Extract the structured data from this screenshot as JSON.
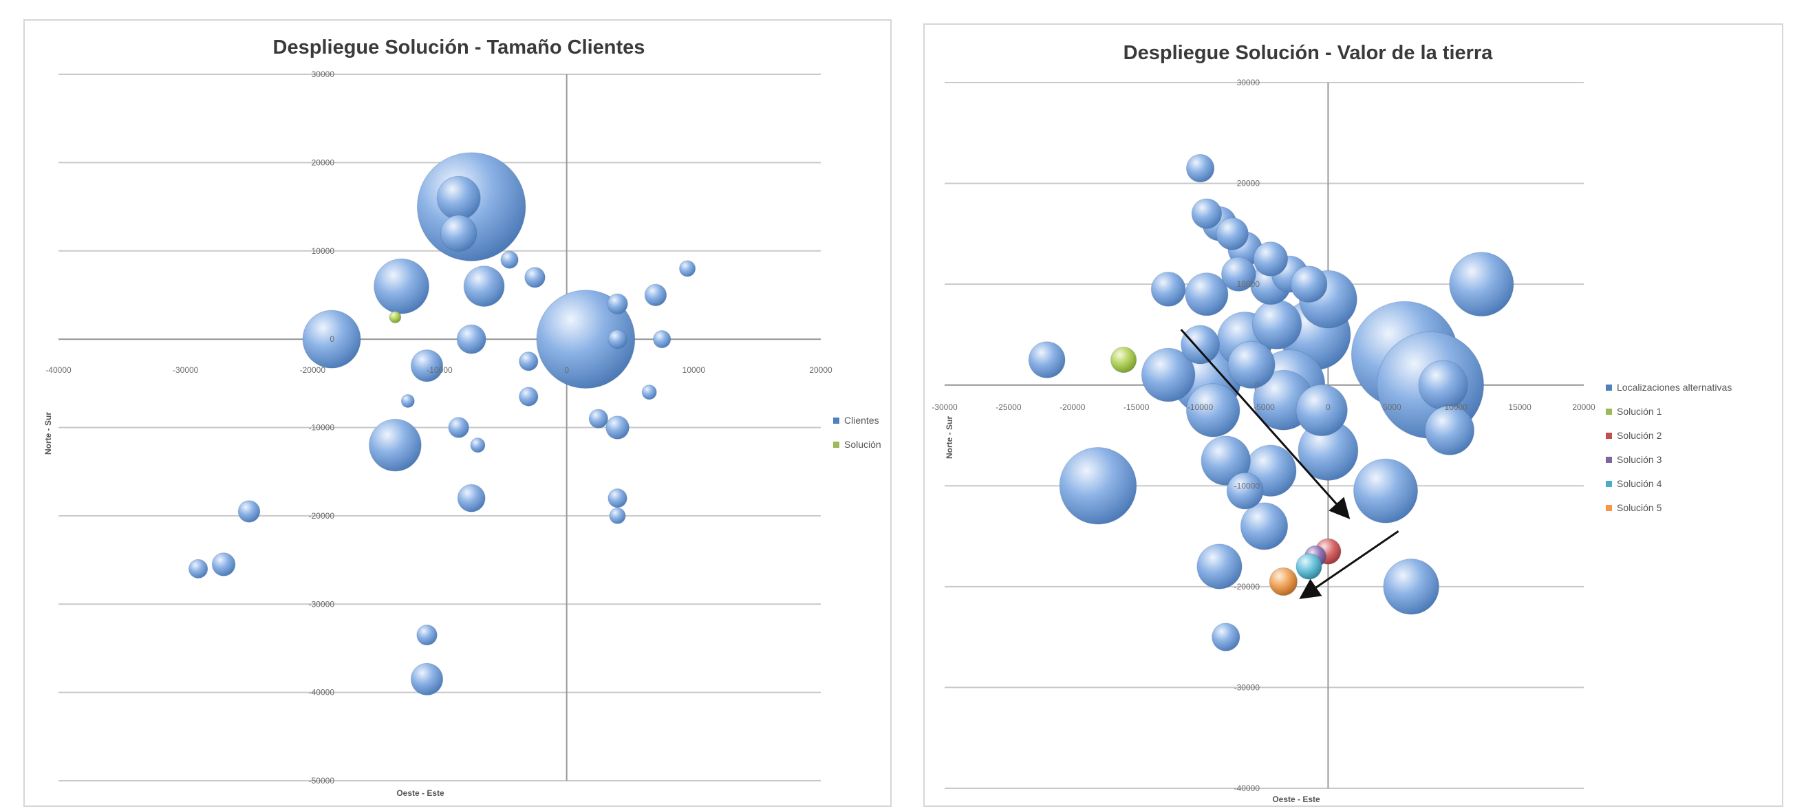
{
  "chart_data": [
    {
      "type": "bubble",
      "title": "Despliegue Solución - Tamaño Clientes",
      "xlabel": "Oeste - Este",
      "ylabel": "Norte - Sur",
      "xlim": [
        -40000,
        20000
      ],
      "ylim": [
        -50000,
        30000
      ],
      "x_ticks": [
        "-40000",
        "-30000",
        "-20000",
        "-10000",
        "0",
        "10000",
        "20000"
      ],
      "y_ticks": [
        "30000",
        "20000",
        "10000",
        "0",
        "-10000",
        "-20000",
        "-30000",
        "-40000",
        "-50000"
      ],
      "grid": true,
      "legend_position": "right",
      "colors": {
        "Clientes": "#7aa3dc",
        "Solución": "#a7c94e"
      },
      "series": [
        {
          "name": "Clientes",
          "points": [
            [
              -7500,
              15000,
              7.5
            ],
            [
              -8500,
              16000,
              3
            ],
            [
              -8500,
              12000,
              2.5
            ],
            [
              -13000,
              6000,
              3.8
            ],
            [
              -6500,
              6000,
              2.8
            ],
            [
              -4500,
              9000,
              1.2
            ],
            [
              -2500,
              7000,
              1.4
            ],
            [
              -18500,
              0,
              4
            ],
            [
              -7500,
              0,
              2
            ],
            [
              -11000,
              -3000,
              2.2
            ],
            [
              -3000,
              -2500,
              1.3
            ],
            [
              -3000,
              -6500,
              1.3
            ],
            [
              -12500,
              -7000,
              0.9
            ],
            [
              -13500,
              -12000,
              3.6
            ],
            [
              -8500,
              -10000,
              1.4
            ],
            [
              -7000,
              -12000,
              1.0
            ],
            [
              1500,
              0,
              6.8
            ],
            [
              4000,
              4000,
              1.4
            ],
            [
              7000,
              5000,
              1.5
            ],
            [
              4000,
              0,
              1.3
            ],
            [
              7500,
              0,
              1.2
            ],
            [
              9500,
              8000,
              1.1
            ],
            [
              6500,
              -6000,
              1.0
            ],
            [
              2500,
              -9000,
              1.3
            ],
            [
              4000,
              -10000,
              1.6
            ],
            [
              -25000,
              -19500,
              1.5
            ],
            [
              -7500,
              -18000,
              1.9
            ],
            [
              4000,
              -18000,
              1.3
            ],
            [
              4000,
              -20000,
              1.1
            ],
            [
              -29000,
              -26000,
              1.3
            ],
            [
              -27000,
              -25500,
              1.6
            ],
            [
              -11000,
              -33500,
              1.4
            ],
            [
              -11000,
              -38500,
              2.2
            ]
          ]
        },
        {
          "name": "Solución",
          "points": [
            [
              -13500,
              2500,
              0.8
            ]
          ]
        }
      ]
    },
    {
      "type": "bubble",
      "title": "Despliegue Solución - Valor de la tierra",
      "xlabel": "Oeste - Este",
      "ylabel": "Norte - Sur",
      "xlim": [
        -30000,
        20000
      ],
      "ylim": [
        -40000,
        30000
      ],
      "x_ticks": [
        "-30000",
        "-25000",
        "-20000",
        "-15000",
        "-10000",
        "-5000",
        "0",
        "5000",
        "10000",
        "15000",
        "20000"
      ],
      "y_ticks": [
        "30000",
        "20000",
        "10000",
        "0",
        "-10000",
        "-20000",
        "-30000",
        "-40000"
      ],
      "grid": true,
      "legend_position": "right",
      "colors": {
        "Localizaciones alternativas": "#7aa3dc",
        "Solución 1": "#a7c94e",
        "Solución 2": "#d25a5a",
        "Solución 3": "#8064a2",
        "Solución 4": "#4bacc6",
        "Solución 5": "#f29a4a"
      },
      "series": [
        {
          "name": "Localizaciones alternativas",
          "points": [
            [
              -10000,
              21500,
              1.3
            ],
            [
              -9500,
              17000,
              1.4
            ],
            [
              -8500,
              16000,
              1.6
            ],
            [
              -7500,
              15000,
              1.5
            ],
            [
              -6500,
              13500,
              1.6
            ],
            [
              -4500,
              12500,
              1.6
            ],
            [
              -3000,
              11000,
              1.7
            ],
            [
              -1500,
              10000,
              1.7
            ],
            [
              -7000,
              11000,
              1.6
            ],
            [
              -4500,
              10000,
              1.9
            ],
            [
              -12500,
              9500,
              1.6
            ],
            [
              -9500,
              9000,
              2.0
            ],
            [
              0,
              8500,
              2.7
            ],
            [
              -4000,
              6000,
              2.3
            ],
            [
              -1000,
              5000,
              3.3
            ],
            [
              -6500,
              4500,
              2.6
            ],
            [
              -10000,
              4000,
              1.8
            ],
            [
              -12500,
              1000,
              2.5
            ],
            [
              -9500,
              500,
              3.2
            ],
            [
              -6000,
              2000,
              2.2
            ],
            [
              -3000,
              0,
              3.3
            ],
            [
              -9000,
              -2500,
              2.5
            ],
            [
              -3500,
              -1500,
              2.8
            ],
            [
              -500,
              -2500,
              2.4
            ],
            [
              6000,
              3000,
              5.0
            ],
            [
              8000,
              0,
              5.0
            ],
            [
              12000,
              10000,
              3.0
            ],
            [
              9000,
              0,
              2.3
            ],
            [
              9500,
              -4500,
              2.3
            ],
            [
              0,
              -6500,
              2.8
            ],
            [
              -8000,
              -7500,
              2.3
            ],
            [
              -6500,
              -10500,
              1.7
            ],
            [
              -4500,
              -8500,
              2.4
            ],
            [
              4500,
              -10500,
              3.0
            ],
            [
              -18000,
              -10000,
              3.6
            ],
            [
              -5000,
              -14000,
              2.2
            ],
            [
              -22000,
              2500,
              1.7
            ],
            [
              -8500,
              -18000,
              2.1
            ],
            [
              6500,
              -20000,
              2.6
            ],
            [
              -8000,
              -25000,
              1.3
            ]
          ]
        },
        {
          "name": "Solución 1",
          "points": [
            [
              -16000,
              2500,
              1.2
            ]
          ]
        },
        {
          "name": "Solución 2",
          "points": [
            [
              0,
              -16500,
              1.2
            ]
          ]
        },
        {
          "name": "Solución 3",
          "points": [
            [
              -1000,
              -17000,
              1.0
            ]
          ]
        },
        {
          "name": "Solución 4",
          "points": [
            [
              -1500,
              -18000,
              1.2
            ]
          ]
        },
        {
          "name": "Solución 5",
          "points": [
            [
              -3500,
              -19500,
              1.3
            ]
          ]
        }
      ],
      "arrows": [
        {
          "from": [
            -11500,
            5500
          ],
          "to": [
            1500,
            -13000
          ]
        },
        {
          "from": [
            5500,
            -14500
          ],
          "to": [
            -2000,
            -21000
          ]
        }
      ]
    }
  ]
}
